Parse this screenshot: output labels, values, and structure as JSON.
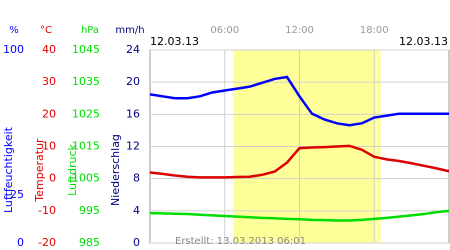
{
  "chart_data": {
    "type": "line",
    "date_left": "12.03.13",
    "date_right": "12.03.13",
    "created": "Erstellt: 13.03.2013 06:01",
    "xlim": [
      0,
      24
    ],
    "xticks": [
      {
        "value": 6,
        "label": "06:00"
      },
      {
        "value": 12,
        "label": "12:00"
      },
      {
        "value": 18,
        "label": "18:00"
      }
    ],
    "daylight": [
      6.7,
      18.5
    ],
    "axes": [
      {
        "unit": "%",
        "title": "Luftfeuchtigkeit",
        "color": "#0000ff",
        "ylim": [
          0,
          100
        ],
        "yticks": [
          0,
          25,
          100
        ]
      },
      {
        "unit": "°C",
        "title": "Temperatur",
        "color": "#e00000",
        "ylim": [
          -20,
          40
        ],
        "yticks": [
          -20,
          -10,
          0,
          10,
          20,
          30,
          40
        ]
      },
      {
        "unit": "hPa",
        "title": "Luftdruck",
        "color": "#00dd00",
        "ylim": [
          985,
          1045
        ],
        "yticks": [
          985,
          995,
          1005,
          1015,
          1025,
          1035,
          1045
        ]
      },
      {
        "unit": "mm/h",
        "title": "Niederschlag",
        "color": "#000080",
        "ylim": [
          0,
          24
        ],
        "yticks": [
          0,
          4,
          8,
          12,
          16,
          20,
          24
        ]
      }
    ],
    "x": [
      0,
      1,
      2,
      3,
      4,
      5,
      6,
      7,
      8,
      9,
      10,
      11,
      12,
      13,
      14,
      15,
      16,
      17,
      18,
      19,
      20,
      21,
      22,
      23,
      24
    ],
    "series": [
      {
        "axis": 0,
        "color": "#0000ff",
        "values": [
          77,
          76,
          75,
          75,
          76,
          78,
          79,
          80,
          81,
          83,
          85,
          86,
          76,
          67,
          64,
          62,
          61,
          62,
          65,
          66,
          67,
          67,
          67,
          67,
          67
        ]
      },
      {
        "axis": 1,
        "color": "#dd0000",
        "values": [
          1.9,
          1.5,
          1.0,
          0.6,
          0.4,
          0.4,
          0.4,
          0.5,
          0.6,
          1.2,
          2.2,
          5.0,
          9.5,
          9.7,
          9.8,
          10.0,
          10.2,
          9.0,
          6.8,
          6.0,
          5.5,
          4.8,
          4.0,
          3.2,
          2.3
        ]
      },
      {
        "axis": 2,
        "color": "#00dd00",
        "values": [
          994.3,
          994.2,
          994.1,
          994.0,
          993.8,
          993.6,
          993.4,
          993.2,
          993.0,
          992.8,
          992.7,
          992.5,
          992.4,
          992.2,
          992.1,
          992.0,
          992.0,
          992.2,
          992.5,
          992.8,
          993.2,
          993.6,
          994.0,
          994.6,
          995.0
        ]
      }
    ]
  }
}
